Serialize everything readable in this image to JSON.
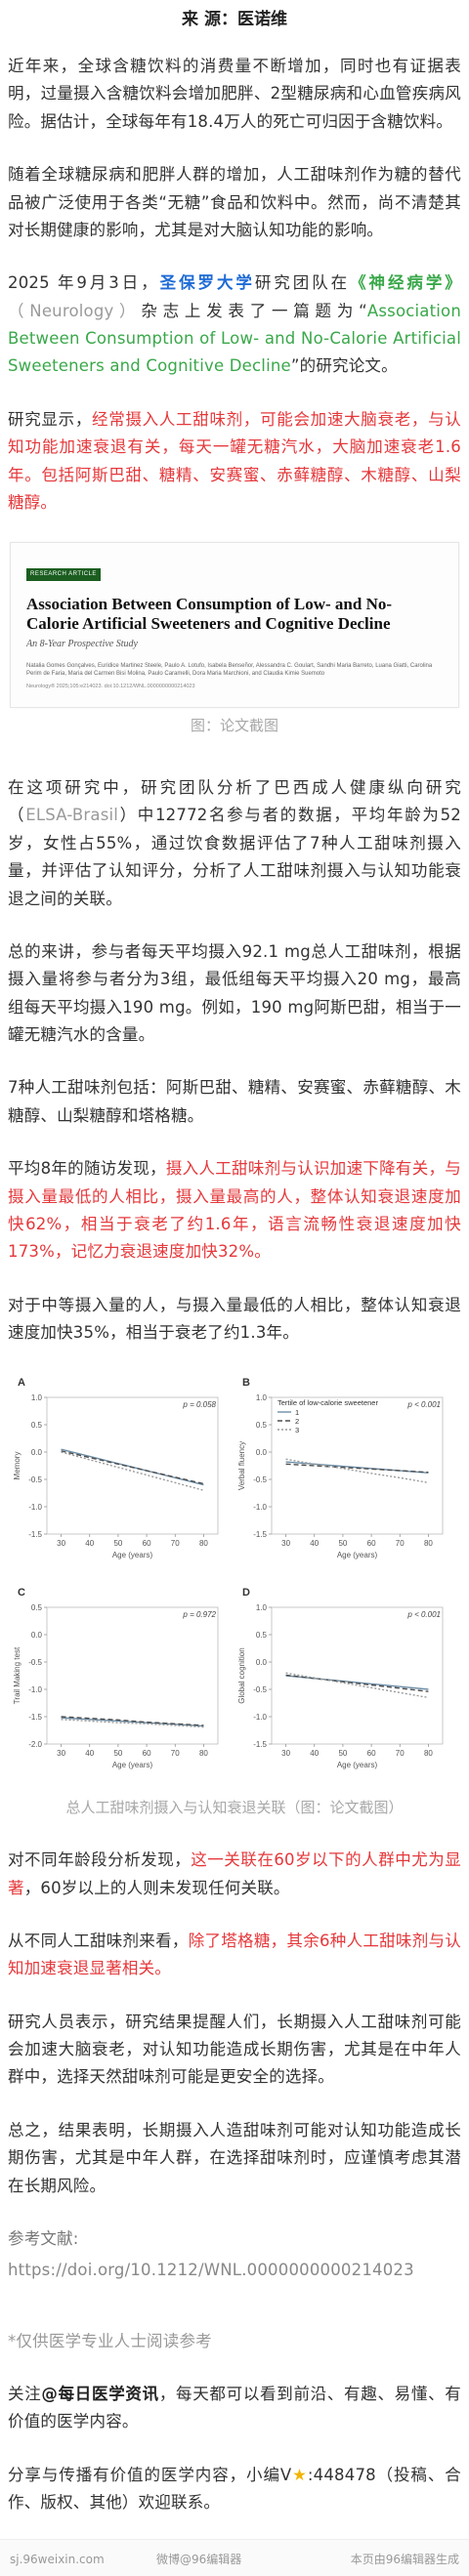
{
  "header": {
    "source_label": "来  源：医诺维"
  },
  "paragraphs": {
    "p1": "近年来，全球含糖饮料的消费量不断增加，同时也有证据表明，过量摄入含糖饮料会增加肥胖、2型糖尿病和心血管疾病风险。据估计，全球每年有18.4万人的死亡可归因于含糖饮料。",
    "p2": "随着全球糖尿病和肥胖人群的增加，人工甜味剂作为糖的替代品被广泛使用于各类“无糖”食品和饮料中。然而，尚不清楚其对长期健康的影响，尤其是对大脑认知功能的影响。",
    "p3_a": "2025 年9月3日，",
    "p3_b": "圣保罗大学",
    "p3_c": "研究团队在",
    "p3_d": "《神经病学》",
    "p3_e": "（Neurology）",
    "p3_f": "杂志上发表了一篇题为“",
    "p3_g": "Association Between Consumption of Low- and No-Calorie Artificial Sweeteners and Cognitive Decline",
    "p3_h": "”的研究论文。",
    "p4_a": "研究显示，",
    "p4_b": "经常摄入人工甜味剂，可能会加速大脑衰老，与认知功能加速衰退有关，每天一罐无糖汽水，大脑加速衰老1.6年。包括阿斯巴甜、糖精、安赛蜜、赤藓糖醇、木糖醇、山梨糖醇。",
    "p5_a": "在这项研究中，研究团队分析了巴西成人健康纵向研究（",
    "p5_b": "ELSA-Brasil",
    "p5_c": "）中12772名参与者的数据，平均年龄为52岁，女性占55%，通过饮食数据评估了7种人工甜味剂摄入量，并评估了认知评分，分析了人工甜味剂摄入与认知功能衰退之间的关联。",
    "p6": "总的来讲，参与者每天平均摄入92.1 mg总人工甜味剂，根据摄入量将参与者分为3组，最低组每天平均摄入20 mg，最高组每天平均摄入190 mg。例如，190 mg阿斯巴甜，相当于一罐无糖汽水的含量。",
    "p7": "7种人工甜味剂包括：阿斯巴甜、糖精、安赛蜜、赤藓糖醇、木糖醇、山梨糖醇和塔格糖。",
    "p8_a": "平均8年的随访发现，",
    "p8_b": "摄入人工甜味剂与认识加速下降有关，与摄入量最低的人相比，摄入量最高的人，整体认知衰退速度加快62%，相当于衰老了约1.6年，语言流畅性衰退速度加快173%，记忆力衰退速度加快32%。",
    "p9": "对于中等摄入量的人，与摄入量最低的人相比，整体认知衰退速度加快35%，相当于衰老了约1.3年。",
    "p10_a": "对不同年龄段分析发现，",
    "p10_b": "这一关联在60岁以下的人群中尤为显著",
    "p10_c": "，60岁以上的人则未发现任何关联。",
    "p11_a": "从不同人工甜味剂来看，",
    "p11_b": "除了塔格糖，其余6种人工甜味剂与认知加速衰退显著相关。",
    "p12": "研究人员表示，研究结果提醒人们，长期摄入人工甜味剂可能会加速大脑衰老，对认知功能造成长期伤害，尤其是在中年人群中，选择天然甜味剂可能是更安全的选择。",
    "p13": "总之，结果表明，长期摄入人造甜味剂可能对认知功能造成长期伤害，尤其是中年人群，在选择甜味剂时，应谨慎考虑其潜在长期风险。"
  },
  "references": {
    "label": "参考文献:",
    "url": "https://doi.org/10.1212/WNL.0000000000214023"
  },
  "notice": "*仅供医学专业人士阅读参考",
  "follow": {
    "a": "关注",
    "b": "@每日医学资讯",
    "c": "，每天都可以看到前沿、有趣、易懂、有价值的医学内容。"
  },
  "contact": {
    "a": "分享与传播有价值的医学内容，小编V",
    "star": "★",
    "b": ":448478（投稿、合作、版权、其他）欢迎联系。"
  },
  "paper_card": {
    "label": "RESEARCH ARTICLE",
    "title": "Association Between Consumption of Low- and No-Calorie Artificial Sweeteners and Cognitive Decline",
    "subtitle": "An 8-Year Prospective Study",
    "authors": "Natalia Gomes Gonçalves, Euridice Martinez Steele, Paulo A. Lotufo, Isabela Benseñor, Alessandra C. Goulart, Sandhi Maria Barreto, Luana Giatti, Carolina Perim de Faria, Maria del Carmen Bisi Molina, Paulo Caramelli, Dora Maria Marchioni, and Claudia Kimie Suemoto",
    "journal": "Neurology® 2025;105:e214023. doi:10.1212/WNL.0000000000214023"
  },
  "captions": {
    "paper": "图：论文截图",
    "figure": "总人工甜味剂摄入与认知衰退关联（图：论文截图）"
  },
  "figure_labels": {
    "xlabel": "Age (years)",
    "legend_title": "Tertile of low-calorie sweetener",
    "legend_items": [
      "1",
      "2",
      "3"
    ],
    "panels": [
      {
        "letter": "A",
        "ylabel": "Memory",
        "p": "p = 0.058"
      },
      {
        "letter": "B",
        "ylabel": "Verbal fluency",
        "p": "p < 0.001"
      },
      {
        "letter": "C",
        "ylabel": "Trail Making test",
        "p": "p = 0.972"
      },
      {
        "letter": "D",
        "ylabel": "Global cognition",
        "p": "p < 0.001"
      }
    ]
  },
  "chart_data": [
    {
      "type": "line",
      "title": "",
      "xlabel": "Age (years)",
      "ylabel": "Memory",
      "x": [
        30,
        40,
        50,
        60,
        70,
        80
      ],
      "xlim": [
        25,
        85
      ],
      "ylim": [
        -1.5,
        1.0
      ],
      "yticks": [
        -1.5,
        -1.0,
        -0.5,
        0,
        0.5,
        1.0
      ],
      "series": [
        {
          "name": "1",
          "values": [
            0.05,
            -0.08,
            -0.21,
            -0.34,
            -0.47,
            -0.6
          ],
          "color": "#6e8fa8"
        },
        {
          "name": "2",
          "values": [
            0.02,
            -0.1,
            -0.22,
            -0.34,
            -0.46,
            -0.58
          ],
          "color": "#4d4d4d"
        },
        {
          "name": "3",
          "values": [
            0.0,
            -0.14,
            -0.28,
            -0.42,
            -0.56,
            -0.7
          ],
          "color": "#9a9a9a"
        }
      ]
    },
    {
      "type": "line",
      "title": "",
      "xlabel": "Age (years)",
      "ylabel": "Verbal fluency",
      "x": [
        30,
        40,
        50,
        60,
        70,
        80
      ],
      "xlim": [
        25,
        85
      ],
      "ylim": [
        -1.5,
        1.0
      ],
      "yticks": [
        -1.5,
        -1.0,
        -0.5,
        0,
        0.5,
        1.0
      ],
      "series": [
        {
          "name": "1",
          "values": [
            -0.18,
            -0.22,
            -0.26,
            -0.3,
            -0.34,
            -0.38
          ],
          "color": "#6e8fa8"
        },
        {
          "name": "2",
          "values": [
            -0.22,
            -0.25,
            -0.28,
            -0.31,
            -0.34,
            -0.37
          ],
          "color": "#4d4d4d"
        },
        {
          "name": "3",
          "values": [
            -0.13,
            -0.22,
            -0.3,
            -0.39,
            -0.47,
            -0.56
          ],
          "color": "#9a9a9a"
        }
      ]
    },
    {
      "type": "line",
      "title": "",
      "xlabel": "Age (years)",
      "ylabel": "Trail Making test",
      "x": [
        30,
        40,
        50,
        60,
        70,
        80
      ],
      "xlim": [
        25,
        85
      ],
      "ylim": [
        -2.0,
        0.5
      ],
      "yticks": [
        -2.0,
        -1.5,
        -1.0,
        -0.5,
        0,
        0.5
      ],
      "series": [
        {
          "name": "1",
          "values": [
            -1.52,
            -1.55,
            -1.58,
            -1.61,
            -1.64,
            -1.67
          ],
          "color": "#6e8fa8"
        },
        {
          "name": "2",
          "values": [
            -1.5,
            -1.53,
            -1.56,
            -1.6,
            -1.63,
            -1.66
          ],
          "color": "#4d4d4d"
        },
        {
          "name": "3",
          "values": [
            -1.55,
            -1.58,
            -1.61,
            -1.63,
            -1.66,
            -1.69
          ],
          "color": "#9a9a9a"
        }
      ]
    },
    {
      "type": "line",
      "title": "",
      "xlabel": "Age (years)",
      "ylabel": "Global cognition",
      "x": [
        30,
        40,
        50,
        60,
        70,
        80
      ],
      "xlim": [
        25,
        85
      ],
      "ylim": [
        -1.5,
        1.0
      ],
      "yticks": [
        -1.5,
        -1.0,
        -0.5,
        0,
        0.5,
        1.0
      ],
      "series": [
        {
          "name": "1",
          "values": [
            -0.25,
            -0.3,
            -0.35,
            -0.4,
            -0.45,
            -0.5
          ],
          "color": "#6e8fa8"
        },
        {
          "name": "2",
          "values": [
            -0.24,
            -0.3,
            -0.36,
            -0.42,
            -0.48,
            -0.54
          ],
          "color": "#4d4d4d"
        },
        {
          "name": "3",
          "values": [
            -0.2,
            -0.29,
            -0.38,
            -0.47,
            -0.56,
            -0.65
          ],
          "color": "#9a9a9a"
        }
      ]
    }
  ],
  "footer": {
    "left": "sj.96weixin.com",
    "mid": "微博@96编辑器",
    "right": "本页由96编辑器生成"
  }
}
